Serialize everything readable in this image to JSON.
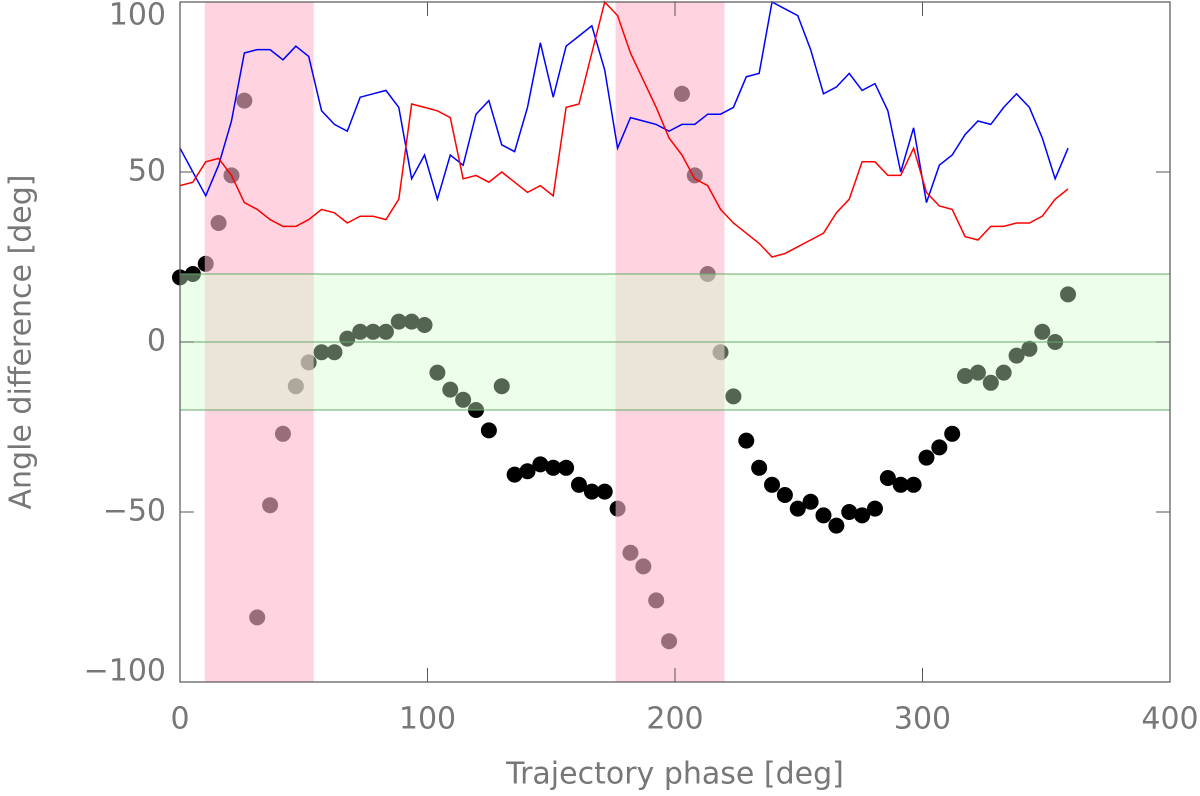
{
  "chart_data": {
    "type": "scatter",
    "xlabel": "Trajectory phase [deg]",
    "ylabel": "Angle difference [deg]",
    "xlim": [
      0,
      400
    ],
    "ylim": [
      -100,
      100
    ],
    "xticks": [
      0,
      100,
      200,
      300,
      400
    ],
    "yticks": [
      {
        "value": -100,
        "label": "−100"
      },
      {
        "value": -50,
        "label": "−50"
      },
      0,
      50,
      100
    ],
    "x": [
      0,
      5.2,
      10.4,
      15.6,
      20.8,
      26,
      31.2,
      36.4,
      41.6,
      46.8,
      52,
      57.2,
      62.4,
      67.6,
      72.8,
      78,
      83.2,
      88.4,
      93.6,
      98.8,
      104,
      109.2,
      114.4,
      119.6,
      124.8,
      130,
      135.2,
      140.4,
      145.6,
      150.8,
      156,
      161.2,
      166.4,
      171.6,
      176.8,
      182,
      187.2,
      192.4,
      197.6,
      202.8,
      208,
      213.2,
      218.4,
      223.6,
      228.8,
      234,
      239.2,
      244.4,
      249.6,
      254.8,
      260,
      265.2,
      270.4,
      275.6,
      280.8,
      286,
      291.2,
      296.4,
      301.6,
      306.8,
      312,
      317.2,
      322.4,
      327.6,
      332.8,
      338,
      343.2,
      348.4,
      353.6,
      358.8
    ],
    "series": [
      {
        "name": "angle difference",
        "kind": "points",
        "color": "#000000",
        "values": [
          19,
          20,
          23,
          35,
          49,
          71,
          -81,
          -48,
          -27,
          -13,
          -6,
          -3,
          -3,
          1,
          3,
          3,
          3,
          6,
          6,
          5,
          -9,
          -14,
          -17,
          -20,
          -26,
          -13,
          -39,
          -38,
          -36,
          -37,
          -37,
          -42,
          -44,
          -44,
          -49,
          -62,
          -66,
          -76,
          -88,
          73,
          49,
          20,
          -3,
          -16,
          -29,
          -37,
          -42,
          -45,
          -49,
          -47,
          -51,
          -54,
          -50,
          -51,
          -49,
          -40,
          -42,
          -42,
          -34,
          -31,
          -27,
          -10,
          -9,
          -12,
          -9,
          -4,
          -2,
          3,
          0,
          14
        ]
      },
      {
        "name": "blue angle",
        "kind": "line",
        "color": "#0000ff",
        "values": [
          57,
          50,
          43,
          52,
          65,
          85,
          86,
          86,
          83,
          87,
          84,
          68,
          64,
          62,
          72,
          73,
          74,
          69,
          48,
          55,
          42,
          55,
          52,
          67,
          71,
          58,
          56,
          69,
          88,
          72,
          87,
          90,
          93,
          80,
          57,
          66,
          65,
          64,
          62,
          64,
          64,
          67,
          67,
          69,
          78,
          79,
          100,
          98,
          96,
          86,
          73,
          75,
          79,
          74,
          76,
          68,
          50,
          63,
          41,
          52,
          55,
          61,
          65,
          64,
          69,
          73,
          69,
          60,
          48,
          57
        ]
      },
      {
        "name": "red angle",
        "kind": "line",
        "color": "#ff0000",
        "values": [
          46,
          47,
          53,
          54,
          49,
          41,
          39,
          36,
          34,
          34,
          36,
          39,
          38,
          35,
          37,
          37,
          36,
          42,
          70,
          69,
          68,
          66,
          48,
          49,
          47,
          50,
          47,
          44,
          46,
          43,
          69,
          70,
          85,
          100,
          96,
          85,
          77,
          69,
          60,
          55,
          48,
          46,
          39,
          35,
          32,
          29,
          25,
          26,
          28,
          30,
          32,
          38,
          42,
          53,
          53,
          49,
          49,
          57,
          44,
          40,
          39,
          31,
          30,
          34,
          34,
          35,
          35,
          37,
          42,
          45
        ]
      }
    ],
    "shaded_x": [
      [
        10,
        54
      ],
      [
        176,
        220
      ]
    ],
    "shaded_x_color": "#ffb6cc",
    "band_y": [
      -20,
      20
    ],
    "band_y_color": "#ccffcc",
    "band_lines": [
      -20,
      0,
      20
    ],
    "band_line_color": "#66aa66"
  }
}
